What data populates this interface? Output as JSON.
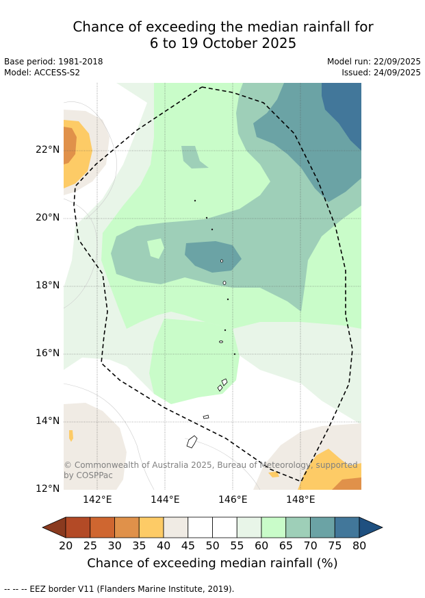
{
  "title": {
    "line1": "Chance of exceeding the median rainfall for",
    "line2": "6 to 19 October 2025"
  },
  "meta": {
    "base_period": "Base period: 1981-2018",
    "model": "Model: ACCESS-S2",
    "model_run": "Model run: 22/09/2025",
    "issued": "Issued: 24/09/2025"
  },
  "map": {
    "lat_ticks": [
      "22°N",
      "20°N",
      "18°N",
      "16°N",
      "14°N",
      "12°N"
    ],
    "lon_ticks": [
      "142°E",
      "144°E",
      "146°E",
      "148°E"
    ],
    "copyright": "© Commonwealth of Australia 2025, Bureau of Meteorology, supported by COSPPac"
  },
  "colorbar": {
    "ticks": [
      "20",
      "25",
      "30",
      "35",
      "40",
      "45",
      "50",
      "55",
      "60",
      "65",
      "70",
      "75",
      "80"
    ],
    "colors": [
      "#8a3a1f",
      "#b34a26",
      "#cf6630",
      "#e0914a",
      "#fdcb66",
      "#f0ebe4",
      "#ffffff",
      "#ffffff",
      "#e8f5e8",
      "#c9fcc9",
      "#9ecfb8",
      "#6ba3a5",
      "#42779a",
      "#1f5080"
    ],
    "label": "Chance of exceeding median rainfall (%)"
  },
  "footnote": "--  --  -- EEZ border V11 (Flanders Marine Institute, 2019)."
}
